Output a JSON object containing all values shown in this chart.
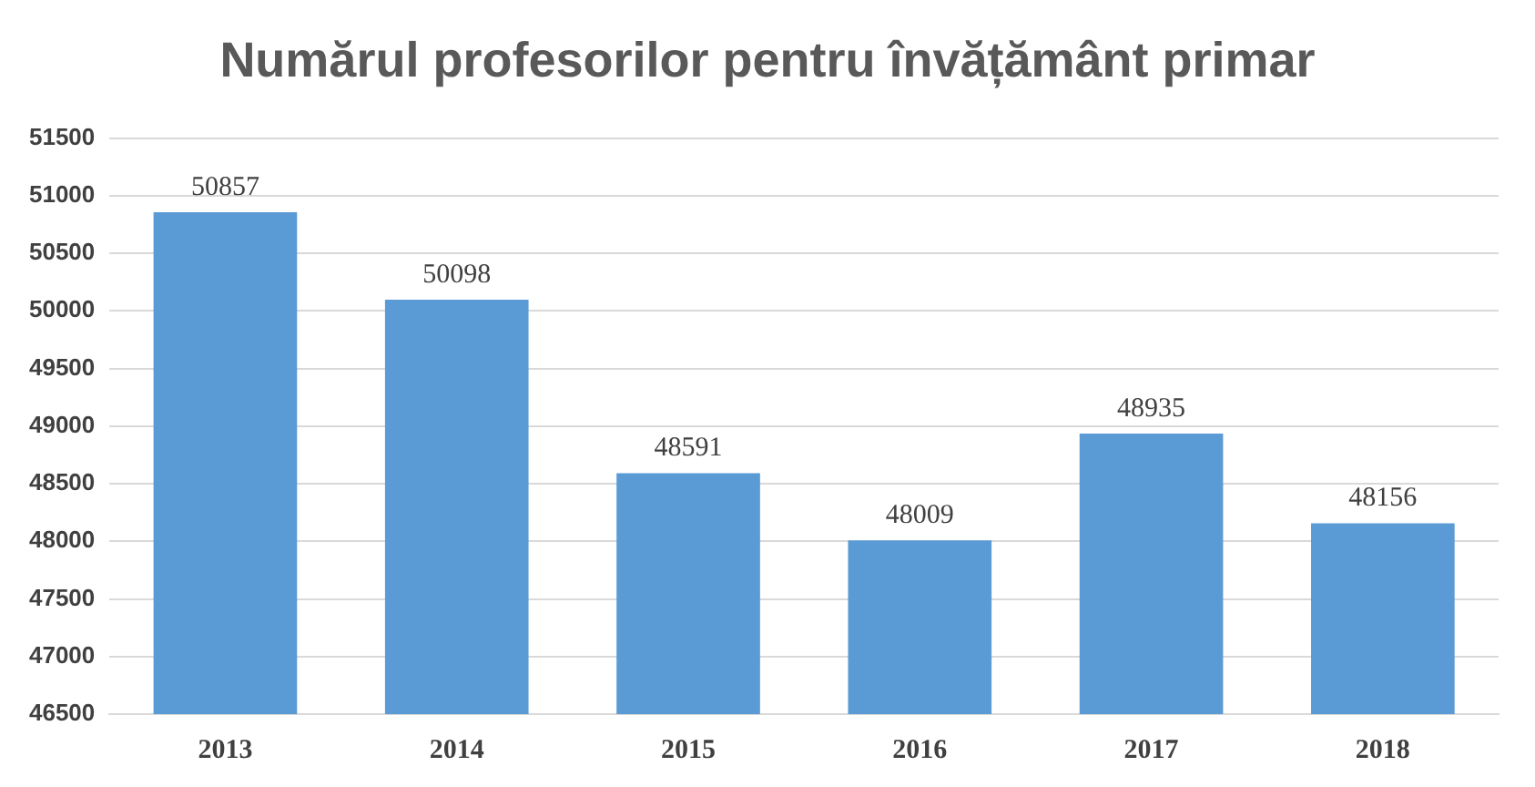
{
  "chart_data": {
    "type": "bar",
    "title": "Numărul profesorilor pentru învățământ primar",
    "categories": [
      "2013",
      "2014",
      "2015",
      "2016",
      "2017",
      "2018"
    ],
    "values": [
      50857,
      50098,
      48591,
      48009,
      48935,
      48156
    ],
    "color": "#5b9bd5",
    "ylim": [
      46500,
      51500
    ],
    "yticks": [
      46500,
      47000,
      47500,
      48000,
      48500,
      49000,
      49500,
      50000,
      50500,
      51000,
      51500
    ],
    "grid": "y",
    "data_labels": true
  }
}
